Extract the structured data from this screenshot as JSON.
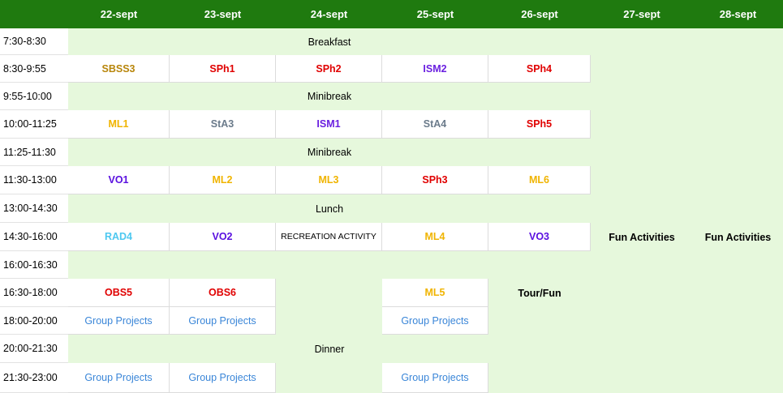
{
  "header": {
    "days": [
      "22-sept",
      "23-sept",
      "24-sept",
      "25-sept",
      "26-sept",
      "27-sept",
      "28-sept"
    ]
  },
  "times": [
    "7:30-8:30",
    "8:30-9:55",
    "9:55-10:00",
    "10:00-11:25",
    "11:25-11:30",
    "11:30-13:00",
    "13:00-14:30",
    "14:30-16:00",
    "16:00-16:30",
    "16:30-18:00",
    "18:00-20:00",
    "20:00-21:30",
    "21:30-23:00"
  ],
  "banners": {
    "breakfast": "Breakfast",
    "minibreak1": "Minibreak",
    "minibreak2": "Minibreak",
    "lunch": "Lunch",
    "dinner": "Dinner"
  },
  "sessions": {
    "r2": [
      "SBSS3",
      "SPh1",
      "SPh2",
      "ISM2",
      "SPh4"
    ],
    "r4": [
      "ML1",
      "StA3",
      "ISM1",
      "StA4",
      "SPh5"
    ],
    "r6": [
      "VO1",
      "ML2",
      "ML3",
      "SPh3",
      "ML6"
    ],
    "r8": [
      "RAD4",
      "VO2",
      "RECREATION ACTIVITY",
      "ML4",
      "VO3",
      "Fun Activities",
      "Fun Activities"
    ],
    "r10": [
      "OBS5",
      "OBS6",
      "ML5",
      "Tour/Fun"
    ],
    "r11": [
      "Group Projects",
      "Group Projects",
      "Group Projects"
    ],
    "r13": [
      "Group Projects",
      "Group Projects",
      "Group Projects"
    ]
  },
  "colors": {
    "header_bg": "#1f7a0f",
    "free_slot_bg": "#e6f8dc",
    "SBSS": "#b8860b",
    "SPh": "#e00000",
    "ISM": "#6a1fe0",
    "ML": "#f0b400",
    "StA": "#6b7b8b",
    "VO": "#5a10e0",
    "RAD": "#4ec8f0",
    "OBS": "#e00000",
    "GroupProjects": "#3a86d8"
  }
}
